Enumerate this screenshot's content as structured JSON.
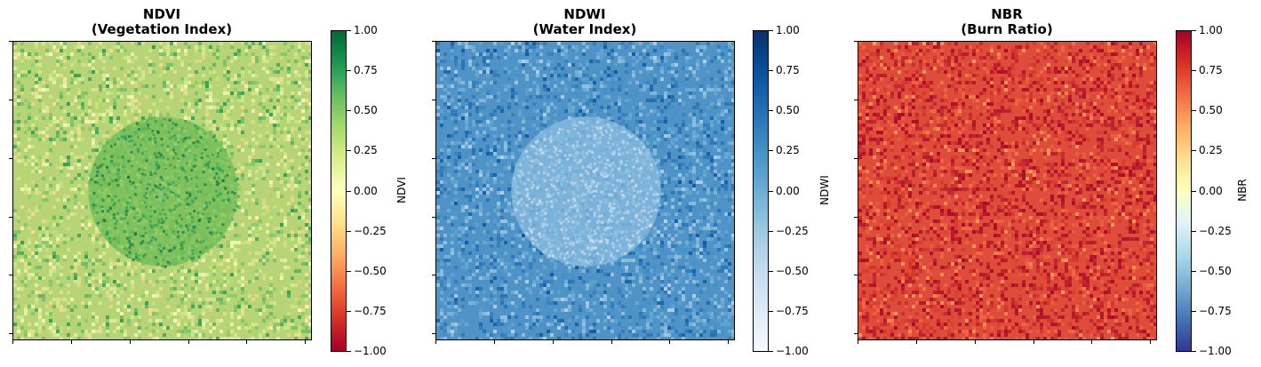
{
  "chart_data": [
    {
      "type": "heatmap",
      "title": "NDVI",
      "subtitle": "(Vegetation Index)",
      "colorbar_label": "NDVI",
      "colormap": "RdYlGn",
      "vmin": -1.0,
      "vmax": 1.0,
      "colorbar_ticks": [
        "1.00",
        "0.75",
        "0.50",
        "0.25",
        "0.00",
        "−0.25",
        "−0.50",
        "−0.75",
        "−1.00"
      ],
      "colorbar_stops": [
        "#006837",
        "#1a9850",
        "#66bd63",
        "#a6d96a",
        "#d9ef8b",
        "#ffffbf",
        "#fee08b",
        "#fdae61",
        "#f46d43",
        "#d73027",
        "#a50026"
      ],
      "background_color": "#b9d477",
      "feature_color": "#6dbb56",
      "feature": "circle",
      "xlim": [
        0,
        1
      ],
      "ylim": [
        0,
        1
      ]
    },
    {
      "type": "heatmap",
      "title": "NDWI",
      "subtitle": "(Water Index)",
      "colorbar_label": "NDWI",
      "colormap": "Blues",
      "vmin": -1.0,
      "vmax": 1.0,
      "colorbar_ticks": [
        "1.00",
        "0.75",
        "0.50",
        "0.25",
        "0.00",
        "−0.25",
        "−0.50",
        "−0.75",
        "−1.00"
      ],
      "colorbar_stops": [
        "#08306b",
        "#08519c",
        "#2171b5",
        "#4292c6",
        "#6baed6",
        "#9ecae1",
        "#c6dbef",
        "#deebf7",
        "#f7fbff"
      ],
      "background_color": "#4f93c7",
      "feature_color": "#8cbde0",
      "feature": "circle",
      "xlim": [
        0,
        1
      ],
      "ylim": [
        0,
        1
      ]
    },
    {
      "type": "heatmap",
      "title": "NBR",
      "subtitle": "(Burn Ratio)",
      "colorbar_label": "NBR",
      "colormap": "RdYlBu",
      "vmin": -1.0,
      "vmax": 1.0,
      "colorbar_ticks": [
        "1.00",
        "0.75",
        "0.50",
        "0.25",
        "0.00",
        "−0.25",
        "−0.50",
        "−0.75",
        "−1.00"
      ],
      "colorbar_stops": [
        "#a50026",
        "#d73027",
        "#f46d43",
        "#fdae61",
        "#fee090",
        "#ffffbf",
        "#e0f3f8",
        "#abd9e9",
        "#74add1",
        "#4575b4",
        "#313695"
      ],
      "background_color": "#dd4d3a",
      "feature_color": "#dd4d3a",
      "feature": "none",
      "xlim": [
        0,
        1
      ],
      "ylim": [
        0,
        1
      ]
    }
  ]
}
